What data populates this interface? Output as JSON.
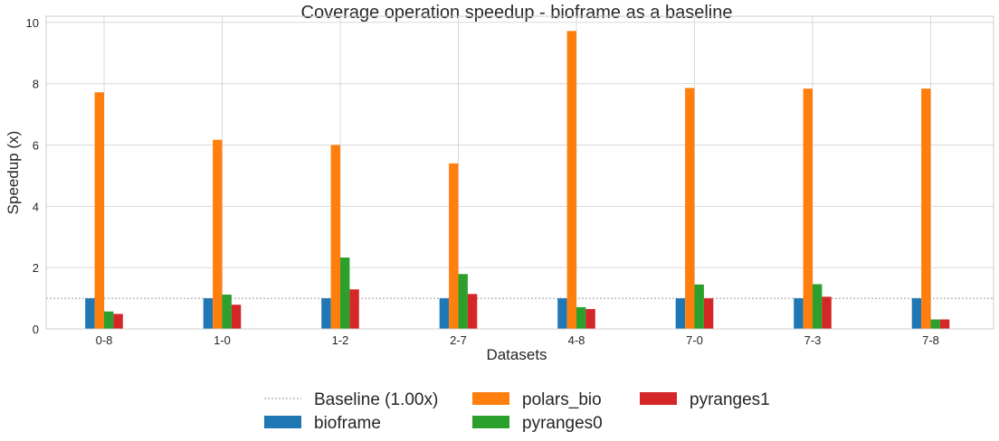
{
  "chart_data": {
    "type": "bar",
    "title": "Coverage operation speedup - bioframe as a baseline",
    "xlabel": "Datasets",
    "ylabel": "Speedup (x)",
    "ylim": [
      0,
      10.2
    ],
    "yticks": [
      0,
      2,
      4,
      6,
      8,
      10
    ],
    "grid": true,
    "legend_placement": "bottom-center",
    "categories": [
      "0-8",
      "1-0",
      "1-2",
      "2-7",
      "4-8",
      "7-0",
      "7-3",
      "7-8"
    ],
    "baseline": {
      "name": "Baseline (1.00x)",
      "value": 1.0,
      "color": "#9a9a9a"
    },
    "series": [
      {
        "name": "bioframe",
        "color": "#1f77b4",
        "values": [
          1.0,
          1.0,
          1.0,
          1.0,
          1.0,
          1.0,
          1.0,
          1.0
        ]
      },
      {
        "name": "polars_bio",
        "color": "#ff7f0e",
        "values": [
          7.72,
          6.17,
          6.0,
          5.4,
          9.72,
          7.86,
          7.84,
          7.84
        ]
      },
      {
        "name": "pyranges0",
        "color": "#2ca02c",
        "values": [
          0.57,
          1.12,
          2.33,
          1.79,
          0.71,
          1.45,
          1.46,
          0.31
        ]
      },
      {
        "name": "pyranges1",
        "color": "#d62728",
        "values": [
          0.49,
          0.79,
          1.29,
          1.14,
          0.65,
          1.0,
          1.05,
          0.31
        ]
      }
    ]
  }
}
